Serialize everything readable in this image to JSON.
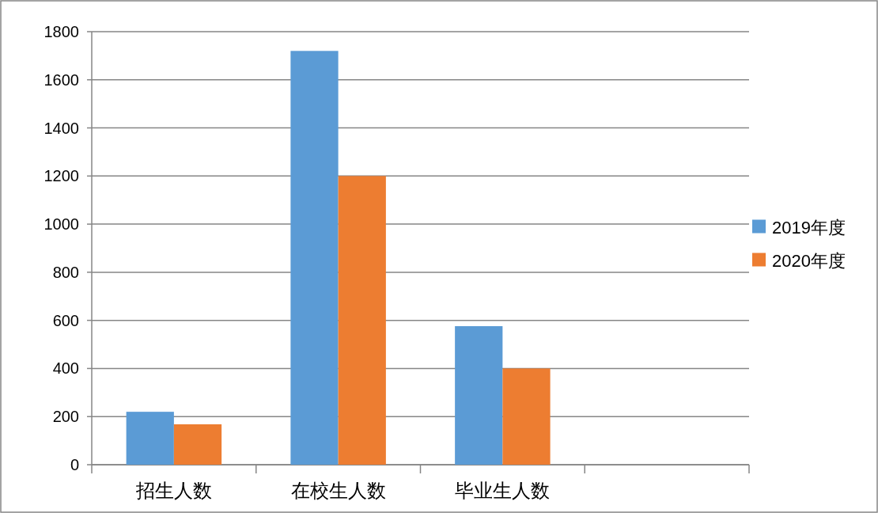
{
  "chart_data": {
    "type": "bar",
    "categories": [
      "招生人数",
      "在校生人数",
      "毕业生人数",
      null
    ],
    "series": [
      {
        "name": "2019年度",
        "color": "#5b9bd5",
        "values": [
          220,
          1720,
          576,
          null
        ]
      },
      {
        "name": "2020年度",
        "color": "#ed7d31",
        "values": [
          168,
          1200,
          400,
          null
        ]
      }
    ],
    "ylim": [
      0,
      1800
    ],
    "yticks": [
      0,
      200,
      400,
      600,
      800,
      1000,
      1200,
      1400,
      1600,
      1800
    ],
    "grid": "y",
    "legend": "right"
  }
}
